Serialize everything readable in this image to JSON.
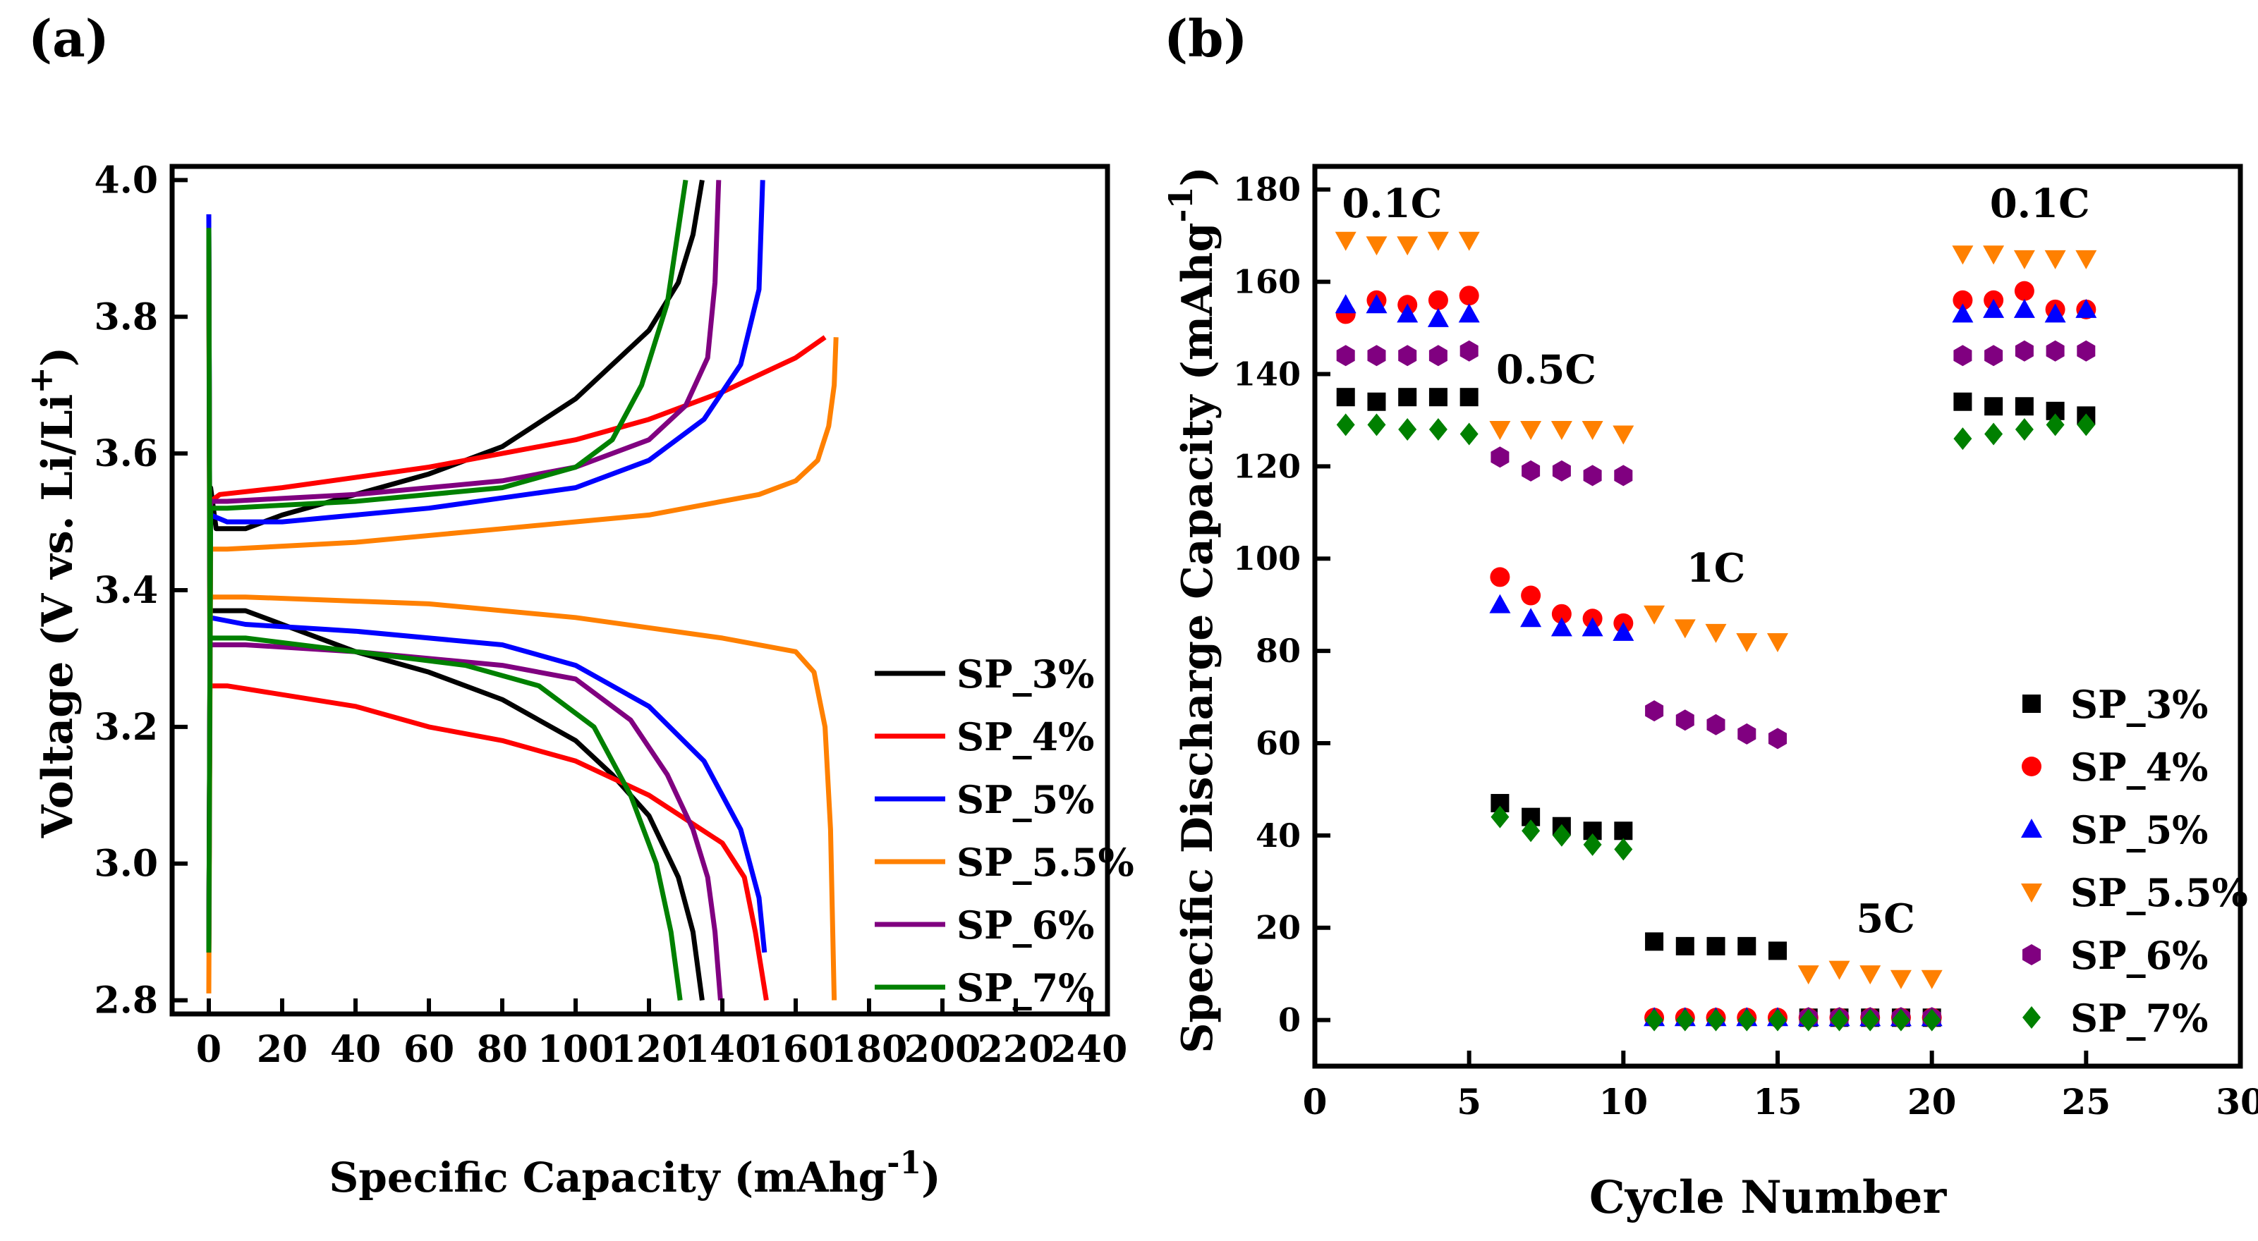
{
  "chart_data": [
    {
      "id": "a",
      "panel_label": "(a)",
      "type": "line",
      "title": "",
      "xlabel": "Specific Capacity (mAhg",
      "xlabel_sup": "-1",
      "xlabel_end": ")",
      "ylabel": "Voltage (V vs. Li/Li",
      "ylabel_sup": "+",
      "ylabel_end": ")",
      "xlim": [
        -10,
        245
      ],
      "ylim": [
        2.78,
        4.02
      ],
      "xticks": [
        0,
        20,
        40,
        60,
        80,
        100,
        120,
        140,
        160,
        180,
        200,
        220,
        240
      ],
      "yticks": [
        2.8,
        3.0,
        3.2,
        3.4,
        3.6,
        3.8,
        4.0
      ],
      "ytick_labels": [
        "2.8",
        "3.0",
        "3.2",
        "3.4",
        "3.6",
        "3.8",
        "4.0"
      ],
      "legend_position": "right-middle",
      "series": [
        {
          "name": "SP_3%",
          "color": "#000000",
          "charge": [
            [
              0,
              2.87
            ],
            [
              0.5,
              3.55
            ],
            [
              2,
              3.49
            ],
            [
              10,
              3.49
            ],
            [
              20,
              3.51
            ],
            [
              40,
              3.54
            ],
            [
              60,
              3.57
            ],
            [
              80,
              3.61
            ],
            [
              100,
              3.68
            ],
            [
              110,
              3.73
            ],
            [
              120,
              3.78
            ],
            [
              128,
              3.85
            ],
            [
              132,
              3.92
            ],
            [
              134.5,
              4.0
            ]
          ],
          "discharge": [
            [
              0,
              3.93
            ],
            [
              0.3,
              3.37
            ],
            [
              10,
              3.37
            ],
            [
              20,
              3.35
            ],
            [
              40,
              3.31
            ],
            [
              60,
              3.28
            ],
            [
              80,
              3.24
            ],
            [
              100,
              3.18
            ],
            [
              110,
              3.13
            ],
            [
              120,
              3.07
            ],
            [
              128,
              2.98
            ],
            [
              132,
              2.9
            ],
            [
              134.5,
              2.8
            ]
          ]
        },
        {
          "name": "SP_4%",
          "color": "#ff0000",
          "charge": [
            [
              0,
              2.87
            ],
            [
              0.5,
              3.53
            ],
            [
              3,
              3.54
            ],
            [
              20,
              3.55
            ],
            [
              60,
              3.58
            ],
            [
              100,
              3.62
            ],
            [
              120,
              3.65
            ],
            [
              140,
              3.69
            ],
            [
              160,
              3.74
            ],
            [
              168,
              3.77
            ]
          ],
          "discharge": [
            [
              0,
              3.9
            ],
            [
              0.3,
              3.26
            ],
            [
              5,
              3.26
            ],
            [
              40,
              3.23
            ],
            [
              60,
              3.2
            ],
            [
              80,
              3.18
            ],
            [
              100,
              3.15
            ],
            [
              120,
              3.1
            ],
            [
              140,
              3.03
            ],
            [
              146,
              2.98
            ],
            [
              149,
              2.9
            ],
            [
              152,
              2.8
            ]
          ]
        },
        {
          "name": "SP_5%",
          "color": "#0000ff",
          "charge": [
            [
              0,
              2.87
            ],
            [
              0.5,
              3.51
            ],
            [
              5,
              3.5
            ],
            [
              20,
              3.5
            ],
            [
              60,
              3.52
            ],
            [
              100,
              3.55
            ],
            [
              120,
              3.59
            ],
            [
              135,
              3.65
            ],
            [
              145,
              3.73
            ],
            [
              150,
              3.84
            ],
            [
              151,
              4.0
            ]
          ],
          "discharge": [
            [
              0,
              3.95
            ],
            [
              0.3,
              3.36
            ],
            [
              10,
              3.35
            ],
            [
              40,
              3.34
            ],
            [
              80,
              3.32
            ],
            [
              100,
              3.29
            ],
            [
              120,
              3.23
            ],
            [
              135,
              3.15
            ],
            [
              145,
              3.05
            ],
            [
              150,
              2.95
            ],
            [
              151.5,
              2.87
            ]
          ]
        },
        {
          "name": "SP_5.5%",
          "color": "#ff8000",
          "charge": [
            [
              0,
              2.81
            ],
            [
              0.5,
              3.46
            ],
            [
              5,
              3.46
            ],
            [
              40,
              3.47
            ],
            [
              80,
              3.49
            ],
            [
              120,
              3.51
            ],
            [
              150,
              3.54
            ],
            [
              160,
              3.56
            ],
            [
              166,
              3.59
            ],
            [
              169,
              3.64
            ],
            [
              170.5,
              3.7
            ],
            [
              171,
              3.77
            ]
          ],
          "discharge": [
            [
              0,
              3.87
            ],
            [
              0.3,
              3.39
            ],
            [
              10,
              3.39
            ],
            [
              60,
              3.38
            ],
            [
              100,
              3.36
            ],
            [
              140,
              3.33
            ],
            [
              160,
              3.31
            ],
            [
              165,
              3.28
            ],
            [
              168,
              3.2
            ],
            [
              169.5,
              3.05
            ],
            [
              170.5,
              2.8
            ]
          ]
        },
        {
          "name": "SP_6%",
          "color": "#800080",
          "charge": [
            [
              0,
              2.87
            ],
            [
              0.5,
              3.53
            ],
            [
              5,
              3.53
            ],
            [
              40,
              3.54
            ],
            [
              80,
              3.56
            ],
            [
              100,
              3.58
            ],
            [
              120,
              3.62
            ],
            [
              130,
              3.67
            ],
            [
              136,
              3.74
            ],
            [
              138,
              3.85
            ],
            [
              139,
              4.0
            ]
          ],
          "discharge": [
            [
              0,
              3.93
            ],
            [
              0.3,
              3.32
            ],
            [
              10,
              3.32
            ],
            [
              40,
              3.31
            ],
            [
              80,
              3.29
            ],
            [
              100,
              3.27
            ],
            [
              115,
              3.21
            ],
            [
              125,
              3.13
            ],
            [
              132,
              3.05
            ],
            [
              136,
              2.98
            ],
            [
              138,
              2.9
            ],
            [
              139.5,
              2.8
            ]
          ]
        },
        {
          "name": "SP_7%",
          "color": "#008000",
          "charge": [
            [
              0,
              2.87
            ],
            [
              0.5,
              3.52
            ],
            [
              5,
              3.52
            ],
            [
              40,
              3.53
            ],
            [
              80,
              3.55
            ],
            [
              100,
              3.58
            ],
            [
              110,
              3.62
            ],
            [
              118,
              3.7
            ],
            [
              125,
              3.82
            ],
            [
              130,
              4.0
            ]
          ],
          "discharge": [
            [
              0,
              3.93
            ],
            [
              0.3,
              3.33
            ],
            [
              10,
              3.33
            ],
            [
              40,
              3.31
            ],
            [
              70,
              3.29
            ],
            [
              90,
              3.26
            ],
            [
              105,
              3.2
            ],
            [
              115,
              3.1
            ],
            [
              122,
              3.0
            ],
            [
              126,
              2.9
            ],
            [
              128.5,
              2.8
            ]
          ]
        }
      ]
    },
    {
      "id": "b",
      "panel_label": "(b)",
      "type": "scatter",
      "title": "",
      "xlabel": "Cycle Number",
      "ylabel": "Specific Discharge Capacity (mAhg",
      "ylabel_sup": "-1",
      "ylabel_end": ")",
      "xlim": [
        0,
        30
      ],
      "ylim": [
        -10,
        185
      ],
      "xticks": [
        0,
        5,
        10,
        15,
        20,
        25,
        30
      ],
      "yticks": [
        0,
        20,
        40,
        60,
        80,
        100,
        120,
        140,
        160,
        180
      ],
      "x": [
        1,
        2,
        3,
        4,
        5,
        6,
        7,
        8,
        9,
        10,
        11,
        12,
        13,
        14,
        15,
        16,
        17,
        18,
        19,
        20,
        21,
        22,
        23,
        24,
        25
      ],
      "rate_annotations": [
        {
          "text": "0.1C",
          "x": 2.5,
          "y": 174
        },
        {
          "text": "0.5C",
          "x": 7.5,
          "y": 138
        },
        {
          "text": "1C",
          "x": 13.0,
          "y": 95
        },
        {
          "text": "5C",
          "x": 18.5,
          "y": 19
        },
        {
          "text": "0.1C",
          "x": 23.5,
          "y": 174
        }
      ],
      "legend_position": "bottom-right",
      "series": [
        {
          "name": "SP_3%",
          "color": "#000000",
          "marker": "square",
          "values": [
            135,
            134,
            135,
            135,
            135,
            47,
            44,
            42,
            41,
            41,
            17,
            16,
            16,
            16,
            15,
            0.5,
            0.5,
            0.5,
            0.5,
            0.5,
            134,
            133,
            133,
            132,
            131
          ]
        },
        {
          "name": "SP_4%",
          "color": "#ff0000",
          "marker": "circle",
          "values": [
            153,
            156,
            155,
            156,
            157,
            96,
            92,
            88,
            87,
            86,
            0.5,
            0.5,
            0.5,
            0.5,
            0.5,
            0.5,
            0.5,
            0.5,
            0.5,
            0.5,
            156,
            156,
            158,
            154,
            154
          ]
        },
        {
          "name": "SP_5%",
          "color": "#0000ff",
          "marker": "triangle-up",
          "values": [
            155,
            155,
            153,
            152,
            153,
            90,
            87,
            85,
            85,
            84,
            0.5,
            0.5,
            0.5,
            0.5,
            0.5,
            0.5,
            0.5,
            0.5,
            0.5,
            0.5,
            153,
            154,
            154,
            153,
            154
          ]
        },
        {
          "name": "SP_5.5%",
          "color": "#ff8000",
          "marker": "triangle-down",
          "values": [
            169,
            168,
            168,
            169,
            169,
            128,
            128,
            128,
            128,
            127,
            88,
            85,
            84,
            82,
            82,
            10,
            11,
            10,
            9,
            9,
            166,
            166,
            165,
            165,
            165
          ]
        },
        {
          "name": "SP_6%",
          "color": "#800080",
          "marker": "hexagon",
          "values": [
            144,
            144,
            144,
            144,
            145,
            122,
            119,
            119,
            118,
            118,
            67,
            65,
            64,
            62,
            61,
            0.5,
            0.5,
            0.5,
            0.5,
            0.5,
            144,
            144,
            145,
            145,
            145
          ]
        },
        {
          "name": "SP_7%",
          "color": "#008000",
          "marker": "diamond",
          "values": [
            129,
            129,
            128,
            128,
            127,
            44,
            41,
            40,
            38,
            37,
            0,
            0,
            0,
            0,
            0,
            0,
            0,
            0,
            0,
            0,
            126,
            127,
            128,
            129,
            129
          ]
        }
      ]
    }
  ]
}
